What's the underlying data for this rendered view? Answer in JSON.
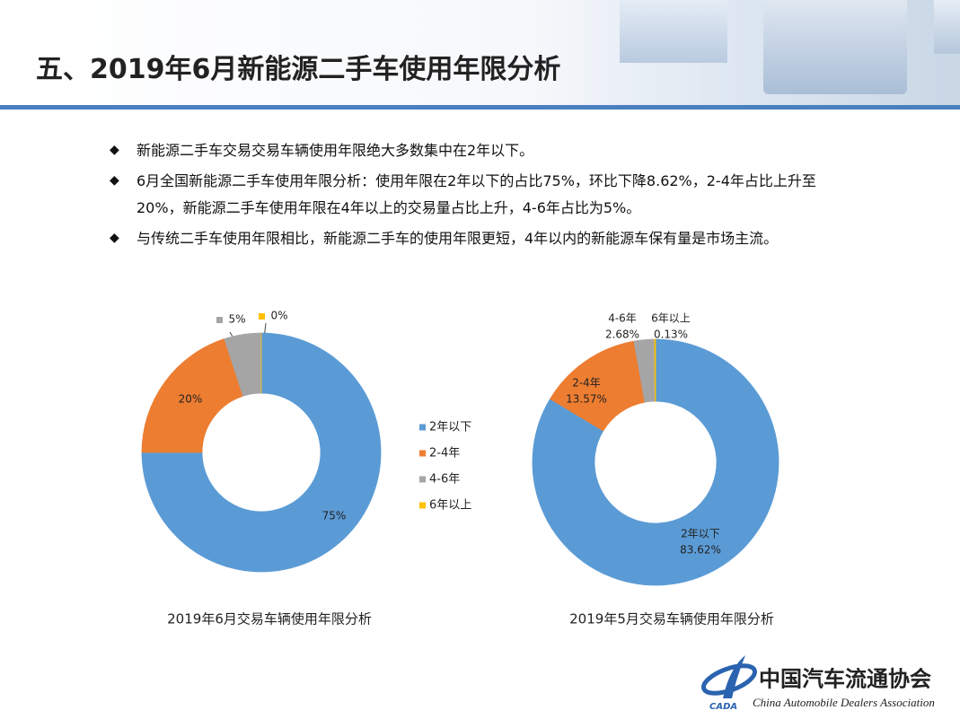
{
  "header": {
    "title": "五、2019年6月新能源二手车使用年限分析"
  },
  "bullets": [
    "新能源二手车交易交易车辆使用年限绝大多数集中在2年以下。",
    "6月全国新能源二手车使用年限分析：使用年限在2年以下的占比75%，环比下降8.62%，2-4年占比上升至20%，新能源二手车使用年限在4年以上的交易量占比上升，4-6年占比为5%。",
    "与传统二手车使用年限相比，新能源二手车的使用年限更短，4年以内的新能源车保有量是市场主流。"
  ],
  "chart_data": [
    {
      "type": "donut",
      "title": "2019年6月交易车辆使用年限分析",
      "categories": [
        "2年以下",
        "2-4年",
        "4-6年",
        "6年以上"
      ],
      "values": [
        75,
        20,
        5,
        0
      ],
      "value_labels": [
        "75%",
        "20%",
        "5%",
        "0%"
      ],
      "colors": [
        "#5b9bd5",
        "#ed7d31",
        "#a5a5a5",
        "#ffc000"
      ],
      "legend": "right"
    },
    {
      "type": "donut",
      "title": "2019年5月交易车辆使用年限分析",
      "categories": [
        "2年以下",
        "2-4年",
        "4-6年",
        "6年以上"
      ],
      "values": [
        83.62,
        13.57,
        2.68,
        0.13
      ],
      "value_labels": [
        "83.62%",
        "13.57%",
        "2.68%",
        "0.13%"
      ],
      "colors": [
        "#5b9bd5",
        "#ed7d31",
        "#a5a5a5",
        "#ffc000"
      ]
    }
  ],
  "logo": {
    "name": "中国汽车流通协会",
    "english": "China Automobile Dealers Association",
    "abbr": "CADA"
  }
}
